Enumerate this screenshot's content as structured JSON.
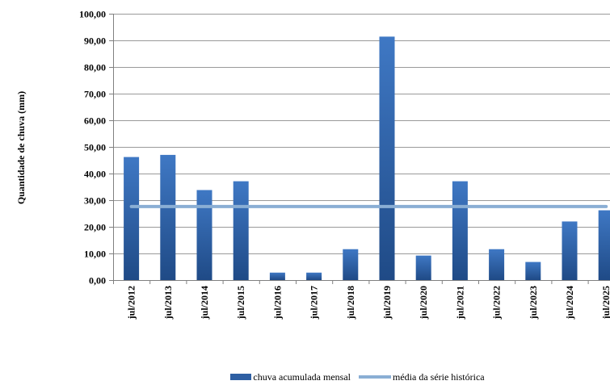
{
  "chart_data": {
    "type": "bar",
    "ylabel": "Quantidade de chuva (mm)",
    "ylim": [
      0,
      100
    ],
    "yticks": [
      "0,00",
      "10,00",
      "20,00",
      "30,00",
      "40,00",
      "50,00",
      "60,00",
      "70,00",
      "80,00",
      "90,00",
      "100,00"
    ],
    "categories": [
      "jul/2012",
      "jul/2013",
      "jul/2014",
      "jul/2015",
      "jul/2016",
      "jul/2017",
      "jul/2018",
      "jul/2019",
      "jul/2020",
      "jul/2021",
      "jul/2022",
      "jul/2023",
      "jul/2024",
      "jul/2025"
    ],
    "series": [
      {
        "name": "chuva acumulada mensal",
        "type": "bar",
        "color": "#2e5fa3",
        "values": [
          46.2,
          47.0,
          33.8,
          37.1,
          2.8,
          2.8,
          11.6,
          91.4,
          9.2,
          37.1,
          11.6,
          6.8,
          22.0,
          26.2
        ]
      },
      {
        "name": "média da série histórica",
        "type": "line",
        "color": "#8aaed4",
        "values": [
          27.6,
          27.6,
          27.6,
          27.6,
          27.6,
          27.6,
          27.6,
          27.6,
          27.6,
          27.6,
          27.6,
          27.6,
          27.6,
          27.6
        ]
      }
    ],
    "grid": true,
    "legend": "bottom"
  }
}
